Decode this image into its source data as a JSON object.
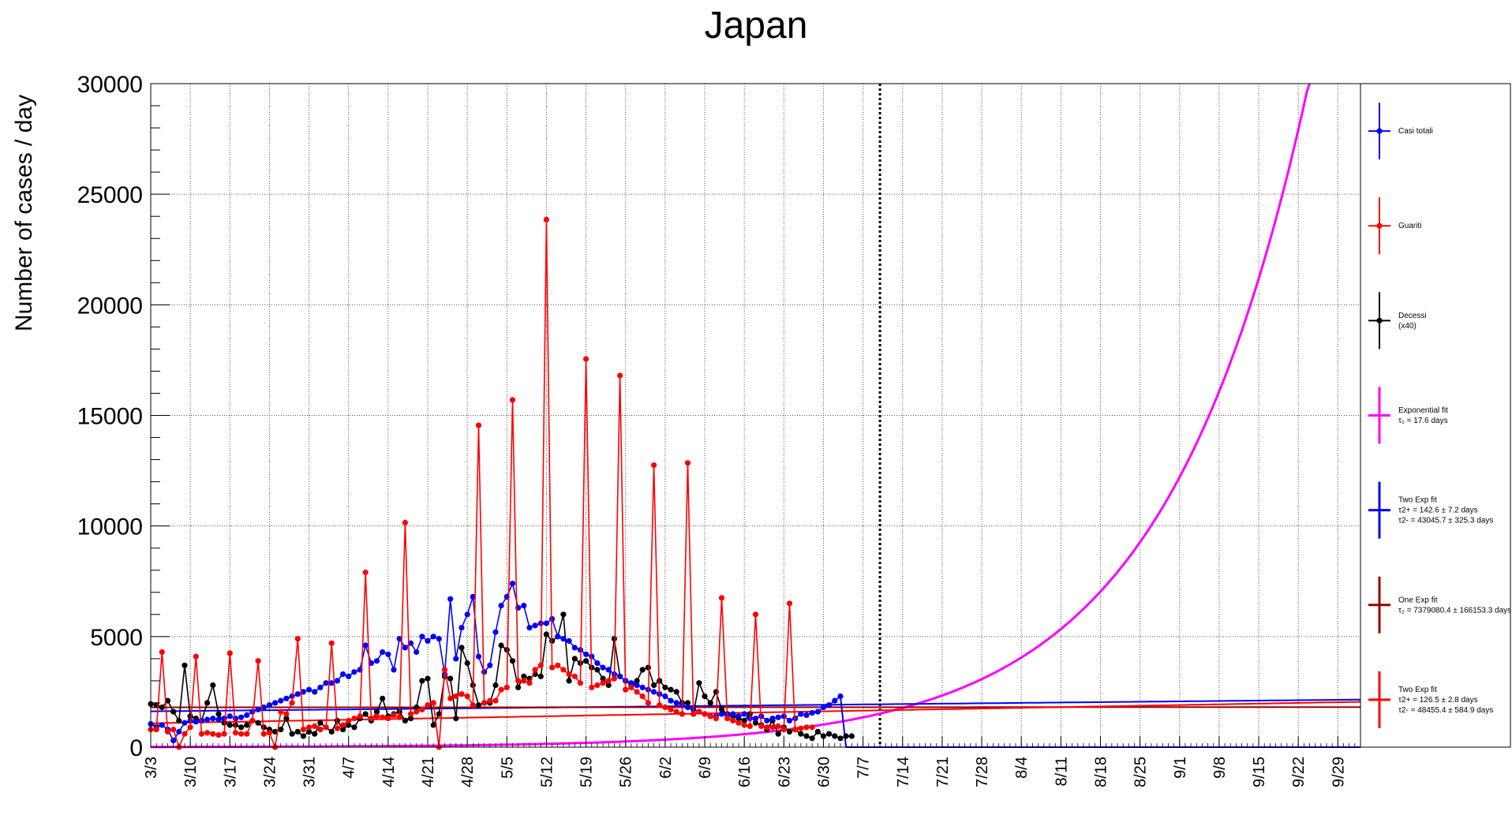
{
  "chart_data": {
    "type": "line",
    "title": "Japan",
    "xlabel": "",
    "ylabel": "Number of cases / day",
    "ylim": [
      0,
      30000
    ],
    "xlim_days": [
      0,
      214
    ],
    "x_start_label": "3/3",
    "x_tick_labels": [
      "3/3",
      "3/10",
      "3/17",
      "3/24",
      "3/31",
      "4/7",
      "4/14",
      "4/21",
      "4/28",
      "5/5",
      "5/12",
      "5/19",
      "5/26",
      "6/2",
      "6/9",
      "6/16",
      "6/23",
      "6/30",
      "7/7",
      "7/14",
      "7/21",
      "7/28",
      "8/4",
      "8/11",
      "8/18",
      "8/25",
      "9/1",
      "9/8",
      "9/15",
      "9/22",
      "9/29"
    ],
    "y_ticks": [
      0,
      5000,
      10000,
      15000,
      20000,
      25000,
      30000
    ],
    "grid": true,
    "vline_date": "7/10",
    "legend_position": "right",
    "series": [
      {
        "name": "Casi totali",
        "color": "#0000ff",
        "kind": "points",
        "values": [
          1050,
          900,
          1000,
          800,
          300,
          700,
          1100,
          1200,
          1150,
          1200,
          1250,
          1300,
          1250,
          1300,
          1400,
          1300,
          1350,
          1450,
          1600,
          1700,
          1800,
          1900,
          2000,
          2100,
          2200,
          2300,
          2400,
          2500,
          2600,
          2500,
          2700,
          2900,
          2900,
          3000,
          3300,
          3200,
          3400,
          3500,
          4600,
          3800,
          3900,
          4300,
          4200,
          3500,
          4900,
          4500,
          4700,
          4300,
          5000,
          4800,
          5000,
          4900,
          3300,
          6700,
          4000,
          5400,
          6000,
          6800,
          4100,
          3400,
          3700,
          5200,
          6400,
          6800,
          7400,
          6300,
          6400,
          5400,
          5500,
          5600,
          5600,
          5800,
          5000,
          4900,
          4800,
          4500,
          4400,
          4200,
          4100,
          3800,
          3600,
          3500,
          3300,
          3200,
          3000,
          2900,
          2800,
          2700,
          2600,
          2500,
          2400,
          2300,
          2100,
          2000,
          1900,
          1800,
          1700,
          1600,
          1500,
          1400,
          1400,
          1500,
          1450,
          1500,
          1400,
          1500,
          1300,
          1300,
          1400,
          1200,
          1300,
          1350,
          1400,
          1200,
          1300,
          1500,
          1450,
          1550,
          1600,
          1800,
          1900,
          2100,
          2300
        ]
      },
      {
        "name": "Guariti",
        "color": "#ff0000",
        "kind": "points",
        "values": [
          800,
          800,
          4300,
          700,
          800,
          0,
          600,
          900,
          4100,
          600,
          650,
          600,
          550,
          600,
          4250,
          650,
          600,
          600,
          1200,
          3900,
          600,
          650,
          0,
          1600,
          1500,
          2000,
          4900,
          800,
          900,
          950,
          800,
          900,
          4700,
          850,
          1000,
          1200,
          1300,
          1400,
          7900,
          1300,
          1400,
          1350,
          1300,
          1450,
          1350,
          10150,
          1500,
          1600,
          1700,
          1900,
          2000,
          0,
          3500,
          2200,
          2300,
          2400,
          2300,
          1900,
          14550,
          2000,
          2100,
          2100,
          2600,
          2700,
          15700,
          3000,
          3000,
          2900,
          3500,
          3700,
          23850,
          3600,
          3700,
          3500,
          3300,
          3200,
          2900,
          17550,
          2700,
          2800,
          2900,
          3000,
          3100,
          16800,
          2600,
          2700,
          2500,
          2300,
          2000,
          12750,
          1900,
          1800,
          1700,
          1600,
          1500,
          12850,
          1500,
          1600,
          1500,
          1400,
          1300,
          6750,
          1300,
          1200,
          1100,
          1000,
          950,
          6000,
          950,
          900,
          900,
          950,
          800,
          6500,
          800,
          850,
          900,
          900
        ]
      },
      {
        "name": "Decessi (x40)",
        "color": "#000000",
        "kind": "points",
        "values": [
          1950,
          1900,
          1800,
          2100,
          1600,
          1200,
          3700,
          1400,
          1300,
          1200,
          2000,
          2800,
          1500,
          1100,
          1000,
          1000,
          900,
          1000,
          1200,
          1100,
          900,
          800,
          700,
          800,
          1300,
          600,
          700,
          500,
          700,
          600,
          1100,
          900,
          700,
          1200,
          800,
          1000,
          900,
          1300,
          1500,
          1200,
          1600,
          2200,
          1400,
          1500,
          1600,
          1200,
          1300,
          1800,
          3000,
          3100,
          1000,
          1500,
          3200,
          3100,
          1300,
          4500,
          3800,
          2800,
          1900,
          2000,
          2000,
          2800,
          4600,
          4400,
          3900,
          2700,
          3200,
          3100,
          3300,
          3200,
          5100,
          4800,
          5000,
          6000,
          3000,
          4000,
          3800,
          3900,
          3600,
          3500,
          3100,
          2800,
          4900,
          3200,
          3000,
          2800,
          3000,
          3500,
          3600,
          2800,
          3000,
          2700,
          2600,
          2500,
          2000,
          2000,
          1500,
          2900,
          2300,
          2000,
          2500,
          1700,
          1500,
          1400,
          1300,
          1200,
          1500,
          1100,
          1000,
          800,
          1200,
          600,
          900,
          700,
          800,
          600,
          500,
          400,
          700,
          500,
          600,
          500,
          400,
          500,
          500
        ]
      },
      {
        "name": "Exponential fit",
        "sub": "τ₂ = 17.6  days",
        "color": "#ff00ff",
        "kind": "curve",
        "fit": {
          "A": 100,
          "t0": 60,
          "tau": 17.6
        }
      },
      {
        "name": "Two Exp fit",
        "sub": "τ2+ = 142.6 ± 7.2 days",
        "sub2": "τ2- = 43045.7 ± 325.3 days",
        "color": "#0000ff",
        "kind": "curve",
        "fit": {
          "y0": 1620,
          "yend": 2150
        }
      },
      {
        "name": "One Exp fit",
        "sub": "τ₂ = 7379080.4  ± 166153.3 days",
        "color": "#990000",
        "kind": "curve",
        "fit": {
          "y0": 1800,
          "yend": 1810
        }
      },
      {
        "name": "Two Exp fit",
        "sub": "τ2+ = 126.5 ± 2.8 days",
        "sub2": "τ2- = 48455.4 ± 584.9 days",
        "color": "#ff0000",
        "kind": "curve",
        "fit": {
          "y0": 1080,
          "yend": 2050
        }
      }
    ]
  }
}
